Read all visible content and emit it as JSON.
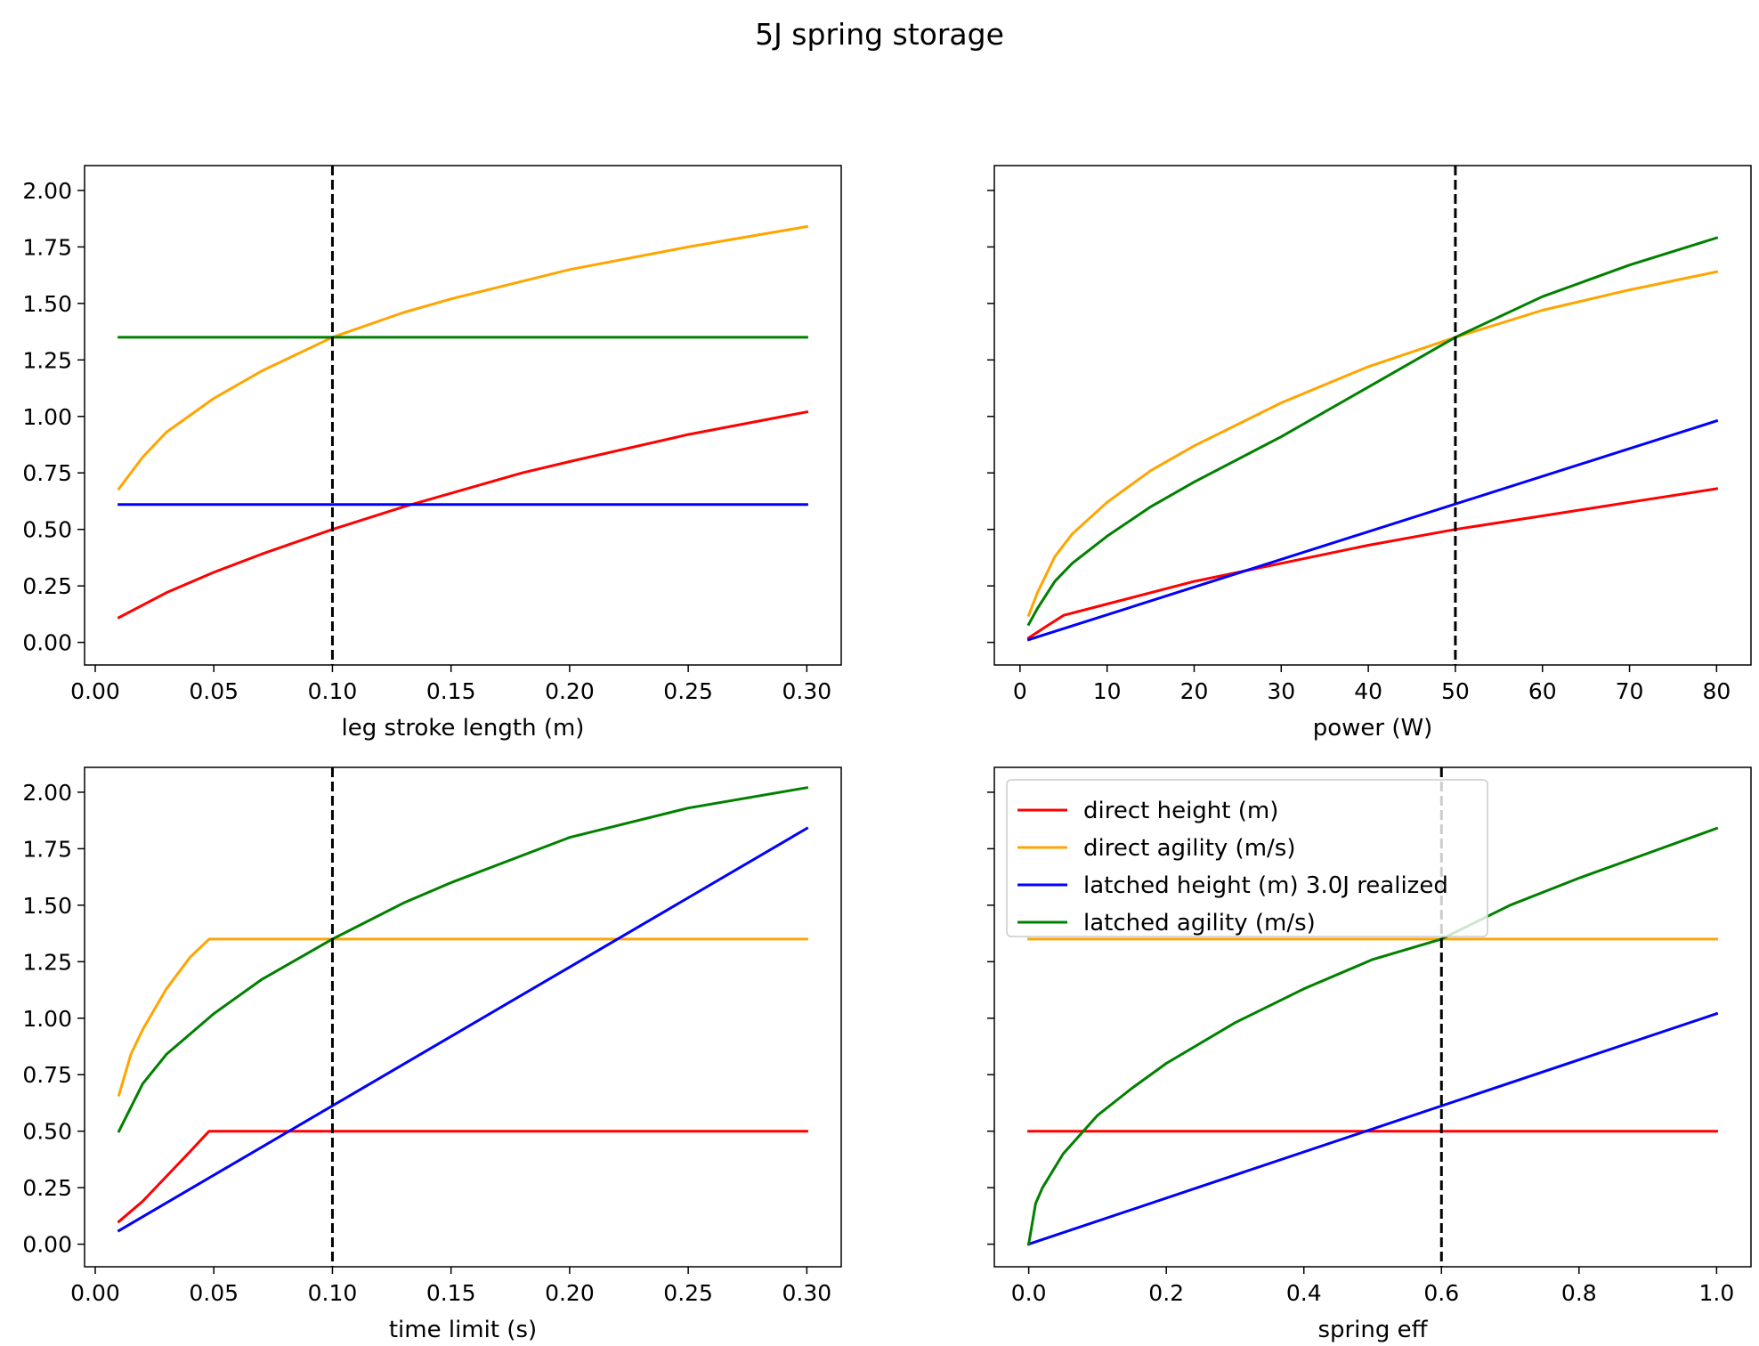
{
  "figure": {
    "title": "5J spring storage"
  },
  "series_colors": {
    "direct_height": "#ff0000",
    "direct_agility": "#ffa500",
    "latched_height": "#0000ff",
    "latched_agility": "#008000",
    "marker": "#000000"
  },
  "chart_data": [
    {
      "type": "line",
      "xlabel": "leg stroke length (m)",
      "ylabel": "",
      "xlim": [
        -0.0045,
        0.3145
      ],
      "ylim": [
        -0.1,
        2.11
      ],
      "xticks": [
        0.0,
        0.05,
        0.1,
        0.15,
        0.2,
        0.25,
        0.3
      ],
      "xtick_labels": [
        "0.00",
        "0.05",
        "0.10",
        "0.15",
        "0.20",
        "0.25",
        "0.30"
      ],
      "yticks": [
        0.0,
        0.25,
        0.5,
        0.75,
        1.0,
        1.25,
        1.5,
        1.75,
        2.0
      ],
      "ytick_labels": [
        "0.00",
        "0.25",
        "0.50",
        "0.75",
        "1.00",
        "1.25",
        "1.50",
        "1.75",
        "2.00"
      ],
      "vline": 0.1,
      "series": [
        {
          "key": "direct_height",
          "x": [
            0.01,
            0.03,
            0.05,
            0.07,
            0.1,
            0.13,
            0.15,
            0.18,
            0.2,
            0.25,
            0.3
          ],
          "y": [
            0.11,
            0.22,
            0.31,
            0.39,
            0.5,
            0.6,
            0.66,
            0.75,
            0.8,
            0.92,
            1.02
          ]
        },
        {
          "key": "direct_agility",
          "x": [
            0.01,
            0.02,
            0.03,
            0.05,
            0.07,
            0.1,
            0.13,
            0.15,
            0.2,
            0.25,
            0.3
          ],
          "y": [
            0.68,
            0.82,
            0.93,
            1.08,
            1.2,
            1.35,
            1.46,
            1.52,
            1.65,
            1.75,
            1.84
          ]
        },
        {
          "key": "latched_height",
          "x": [
            0.01,
            0.3
          ],
          "y": [
            0.61,
            0.61
          ]
        },
        {
          "key": "latched_agility",
          "x": [
            0.01,
            0.3
          ],
          "y": [
            1.35,
            1.35
          ]
        }
      ]
    },
    {
      "type": "line",
      "xlabel": "power (W)",
      "ylabel": "",
      "xlim": [
        -2.95,
        83.95
      ],
      "ylim": [
        -0.1,
        2.11
      ],
      "xticks": [
        0,
        10,
        20,
        30,
        40,
        50,
        60,
        70,
        80
      ],
      "xtick_labels": [
        "0",
        "10",
        "20",
        "30",
        "40",
        "50",
        "60",
        "70",
        "80"
      ],
      "yticks": [
        0.0,
        0.25,
        0.5,
        0.75,
        1.0,
        1.25,
        1.5,
        1.75,
        2.0
      ],
      "ytick_labels": [],
      "vline": 50,
      "series": [
        {
          "key": "direct_height",
          "x": [
            1,
            3,
            5,
            10,
            20,
            30,
            40,
            50,
            60,
            70,
            80
          ],
          "y": [
            0.02,
            0.07,
            0.12,
            0.17,
            0.27,
            0.35,
            0.43,
            0.5,
            0.56,
            0.62,
            0.68
          ]
        },
        {
          "key": "direct_agility",
          "x": [
            1,
            2,
            4,
            6,
            10,
            15,
            20,
            30,
            40,
            50,
            60,
            70,
            80
          ],
          "y": [
            0.12,
            0.22,
            0.38,
            0.48,
            0.62,
            0.76,
            0.87,
            1.06,
            1.22,
            1.35,
            1.47,
            1.56,
            1.64
          ]
        },
        {
          "key": "latched_height",
          "x": [
            1,
            80
          ],
          "y": [
            0.012,
            0.98
          ]
        },
        {
          "key": "latched_agility",
          "x": [
            1,
            2,
            4,
            6,
            10,
            15,
            20,
            30,
            40,
            50,
            60,
            70,
            80
          ],
          "y": [
            0.08,
            0.15,
            0.27,
            0.35,
            0.47,
            0.6,
            0.71,
            0.91,
            1.13,
            1.35,
            1.53,
            1.67,
            1.79
          ]
        }
      ]
    },
    {
      "type": "line",
      "xlabel": "time limit (s)",
      "ylabel": "",
      "xlim": [
        -0.0045,
        0.3145
      ],
      "ylim": [
        -0.1,
        2.11
      ],
      "xticks": [
        0.0,
        0.05,
        0.1,
        0.15,
        0.2,
        0.25,
        0.3
      ],
      "xtick_labels": [
        "0.00",
        "0.05",
        "0.10",
        "0.15",
        "0.20",
        "0.25",
        "0.30"
      ],
      "yticks": [
        0.0,
        0.25,
        0.5,
        0.75,
        1.0,
        1.25,
        1.5,
        1.75,
        2.0
      ],
      "ytick_labels": [
        "0.00",
        "0.25",
        "0.50",
        "0.75",
        "1.00",
        "1.25",
        "1.50",
        "1.75",
        "2.00"
      ],
      "vline": 0.1,
      "series": [
        {
          "key": "direct_height",
          "x": [
            0.01,
            0.02,
            0.03,
            0.04,
            0.048,
            0.3
          ],
          "y": [
            0.1,
            0.19,
            0.3,
            0.41,
            0.5,
            0.5
          ]
        },
        {
          "key": "direct_agility",
          "x": [
            0.01,
            0.015,
            0.02,
            0.03,
            0.04,
            0.048,
            0.3
          ],
          "y": [
            0.66,
            0.84,
            0.95,
            1.13,
            1.27,
            1.35,
            1.35
          ]
        },
        {
          "key": "latched_height",
          "x": [
            0.01,
            0.3
          ],
          "y": [
            0.06,
            1.84
          ]
        },
        {
          "key": "latched_agility",
          "x": [
            0.01,
            0.02,
            0.03,
            0.05,
            0.07,
            0.1,
            0.13,
            0.15,
            0.2,
            0.25,
            0.3
          ],
          "y": [
            0.5,
            0.71,
            0.84,
            1.02,
            1.17,
            1.35,
            1.51,
            1.6,
            1.8,
            1.93,
            2.02
          ]
        }
      ]
    },
    {
      "type": "line",
      "xlabel": "spring eff",
      "ylabel": "",
      "xlim": [
        -0.05,
        1.05
      ],
      "ylim": [
        -0.1,
        2.11
      ],
      "xticks": [
        0.0,
        0.2,
        0.4,
        0.6,
        0.8,
        1.0
      ],
      "xtick_labels": [
        "0.0",
        "0.2",
        "0.4",
        "0.6",
        "0.8",
        "1.0"
      ],
      "yticks": [
        0.0,
        0.25,
        0.5,
        0.75,
        1.0,
        1.25,
        1.5,
        1.75,
        2.0
      ],
      "ytick_labels": [],
      "vline": 0.6,
      "legend": {
        "placement": "upper left",
        "entries": [
          "direct height (m)",
          "direct agility (m/s)",
          "latched height (m) 3.0J realized",
          "latched agility (m/s)"
        ]
      },
      "series": [
        {
          "key": "direct_height",
          "x": [
            0.0,
            1.0
          ],
          "y": [
            0.5,
            0.5
          ]
        },
        {
          "key": "direct_agility",
          "x": [
            0.0,
            1.0
          ],
          "y": [
            1.35,
            1.35
          ]
        },
        {
          "key": "latched_height",
          "x": [
            0.0,
            1.0
          ],
          "y": [
            0.0,
            1.02
          ]
        },
        {
          "key": "latched_agility",
          "x": [
            0.0,
            0.01,
            0.02,
            0.05,
            0.1,
            0.15,
            0.2,
            0.3,
            0.4,
            0.5,
            0.6,
            0.7,
            0.8,
            0.9,
            1.0
          ],
          "y": [
            0.0,
            0.18,
            0.25,
            0.4,
            0.57,
            0.69,
            0.8,
            0.98,
            1.13,
            1.26,
            1.35,
            1.5,
            1.62,
            1.73,
            1.84
          ]
        }
      ]
    }
  ]
}
